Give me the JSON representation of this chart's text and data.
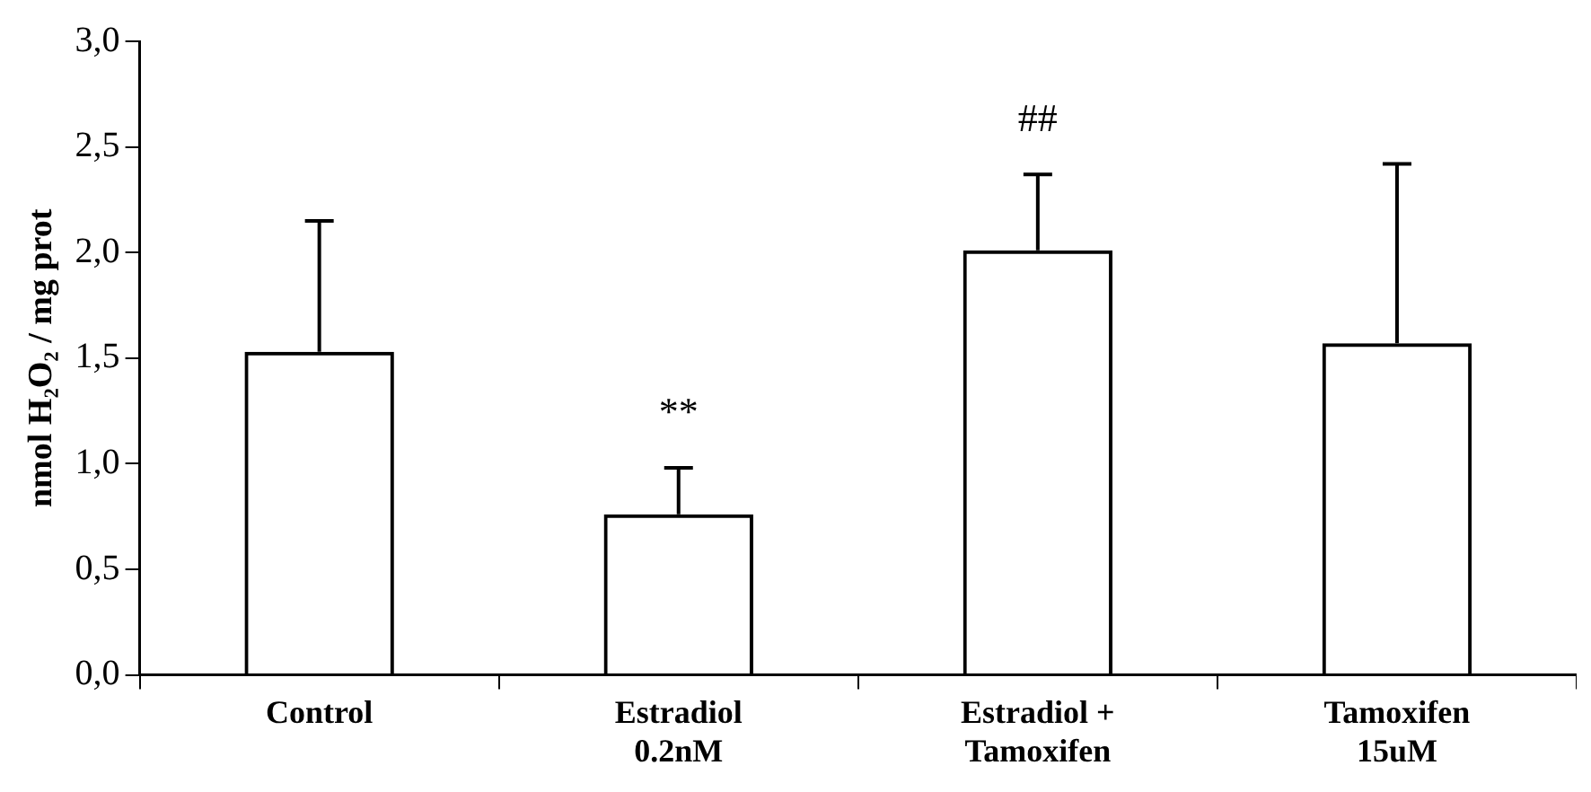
{
  "chart_data": {
    "type": "bar",
    "ylabel": "nmol H₂O₂ / mg prot",
    "categories": [
      "Control",
      "Estradiol\n0.2nM",
      "Estradiol +\nTamoxifen",
      "Tamoxifen\n15uM"
    ],
    "values": [
      1.53,
      0.76,
      2.01,
      1.57
    ],
    "colors": [
      "#000000",
      "#000000",
      "#000000",
      "#000000"
    ],
    "errors": [
      [
        1.53,
        2.15
      ],
      [
        0.76,
        0.98
      ],
      [
        2.01,
        2.37
      ],
      [
        1.57,
        2.42
      ]
    ],
    "ylim": [
      0,
      3
    ],
    "yticks": [
      {
        "value": 0,
        "label": "0,0"
      },
      {
        "value": 0.5,
        "label": "0,5"
      },
      {
        "value": 1,
        "label": "1,0"
      },
      {
        "value": 1.5,
        "label": "1,5"
      },
      {
        "value": 2,
        "label": "2,0"
      },
      {
        "value": 2.5,
        "label": "2,5"
      },
      {
        "value": 3,
        "label": "3,0"
      }
    ],
    "value_labels": [
      null,
      "**",
      "##",
      null
    ],
    "grid": false,
    "legend": false
  }
}
